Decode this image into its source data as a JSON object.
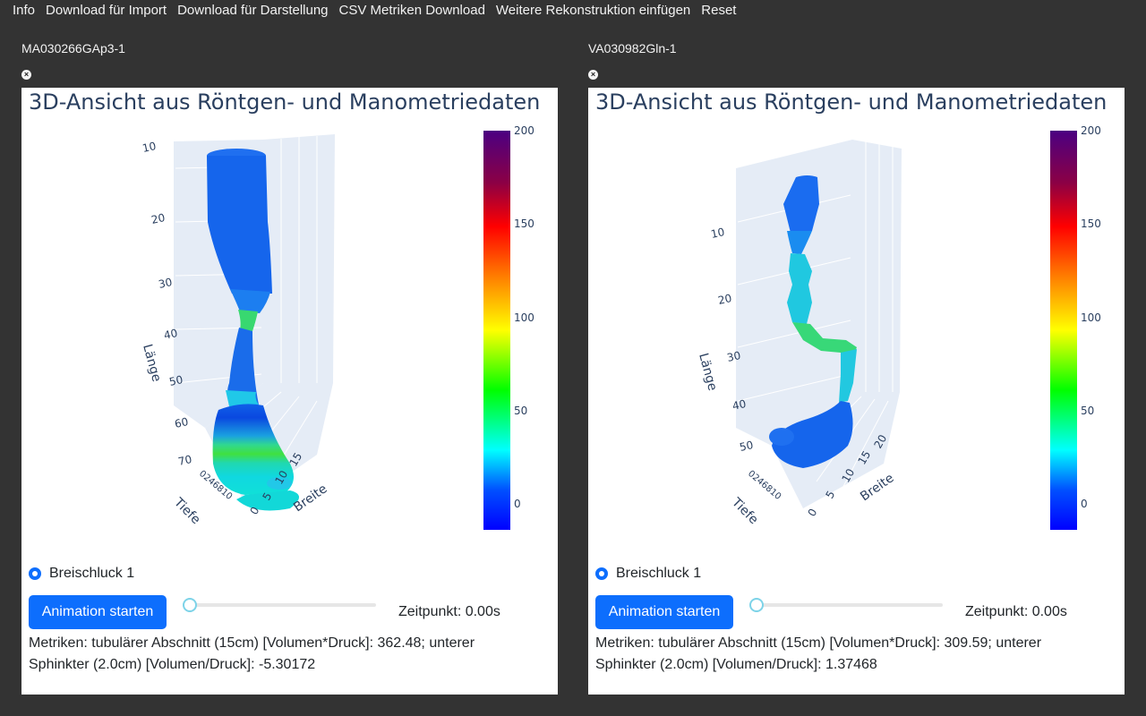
{
  "menu": [
    "Info",
    "Download für Import",
    "Download für Darstellung",
    "CSV Metriken Download",
    "Weitere Rekonstruktion einfügen",
    "Reset"
  ],
  "close_glyph": "×",
  "colorbar": {
    "ticks": [
      "200",
      "150",
      "100",
      "50",
      "0"
    ],
    "colors": [
      "#4b0082",
      "#8b0045",
      "#ff0000",
      "#ff8c00",
      "#ffff00",
      "#00ff00",
      "#00ffff",
      "#0050ff",
      "#0000ff"
    ]
  },
  "panels": [
    {
      "name": "MA030266GAp3-1",
      "title": "3D-Ansicht aus Röntgen- und Manometriedaten",
      "axis_labels": {
        "z": "Länge",
        "y": "Tiefe",
        "x": "Breite"
      },
      "z_ticks": [
        "10",
        "20",
        "30",
        "40",
        "50",
        "60",
        "70"
      ],
      "x_ticks": [
        "0",
        "5",
        "10",
        "15"
      ],
      "depth_ticks": "0246810",
      "radio_label": "Breischluck 1",
      "button_label": "Animation starten",
      "time_label": "Zeitpunkt: 0.00s",
      "metrics": "Metriken: tubulärer Abschnitt (15cm) [Volumen*Druck]: 362.48; unterer Sphinkter (2.0cm) [Volumen/Druck]: -5.30172",
      "slider_value": 0
    },
    {
      "name": "VA030982Gln-1",
      "title": "3D-Ansicht aus Röntgen- und Manometriedaten",
      "axis_labels": {
        "z": "Länge",
        "y": "Tiefe",
        "x": "Breite"
      },
      "z_ticks": [
        "10",
        "20",
        "30",
        "40",
        "50"
      ],
      "x_ticks": [
        "0",
        "5",
        "10",
        "15",
        "20"
      ],
      "depth_ticks": "0246810",
      "radio_label": "Breischluck 1",
      "button_label": "Animation starten",
      "time_label": "Zeitpunkt: 0.00s",
      "metrics": "Metriken: tubulärer Abschnitt (15cm) [Volumen*Druck]: 309.59; unterer Sphinkter (2.0cm) [Volumen/Druck]: 1.37468",
      "slider_value": 0
    }
  ]
}
